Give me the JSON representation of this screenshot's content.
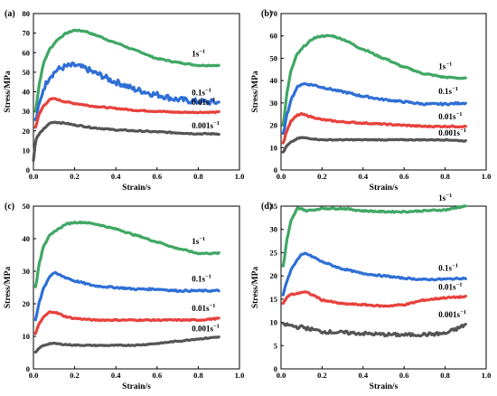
{
  "colors": {
    "1s-1": "#3fa764",
    "0.1s-1": "#2f6fd6",
    "0.01s-1": "#e8413c",
    "0.001s-1": "#555555"
  },
  "chart_data": [
    {
      "type": "line",
      "panel_label": "(a)",
      "xlabel": "Strain/s",
      "ylabel": "Stress/MPa",
      "xlim": [
        0.0,
        1.0
      ],
      "ylim": [
        0,
        80
      ],
      "xticks": [
        "0.0",
        "0.2",
        "0.4",
        "0.6",
        "0.8",
        "1.0"
      ],
      "yticks": [
        "0",
        "10",
        "20",
        "30",
        "40",
        "50",
        "60",
        "70",
        "80"
      ],
      "series": [
        {
          "name": "1s",
          "exponent": "−1",
          "color_key": "1s-1",
          "noise": 0.3,
          "x": [
            0.01,
            0.03,
            0.05,
            0.08,
            0.12,
            0.16,
            0.2,
            0.25,
            0.3,
            0.4,
            0.5,
            0.6,
            0.7,
            0.8,
            0.9
          ],
          "y": [
            30,
            45,
            55,
            62,
            67,
            70,
            71.5,
            71,
            69,
            65,
            61,
            57,
            55,
            53.5,
            53.5
          ]
        },
        {
          "name": "0.1s",
          "exponent": "−1",
          "color_key": "0.1s-1",
          "noise": 1.5,
          "x": [
            0.01,
            0.03,
            0.05,
            0.08,
            0.12,
            0.16,
            0.2,
            0.25,
            0.3,
            0.4,
            0.5,
            0.6,
            0.7,
            0.8,
            0.9
          ],
          "y": [
            25,
            34,
            42,
            48,
            51.5,
            53,
            53.5,
            52,
            49.5,
            45,
            41,
            38.5,
            36,
            35,
            34.5
          ]
        },
        {
          "name": "0.01s",
          "exponent": "−1",
          "color_key": "0.01s-1",
          "noise": 0.3,
          "x": [
            0.01,
            0.03,
            0.05,
            0.08,
            0.1,
            0.15,
            0.2,
            0.3,
            0.4,
            0.5,
            0.6,
            0.7,
            0.8,
            0.9
          ],
          "y": [
            22,
            29,
            33,
            36,
            36.5,
            35,
            34,
            32.5,
            31.5,
            30.5,
            30,
            29.5,
            29.5,
            29.5
          ]
        },
        {
          "name": "0.001s",
          "exponent": "−1",
          "color_key": "0.001s-1",
          "noise": 0.3,
          "x": [
            0.0,
            0.01,
            0.02,
            0.04,
            0.06,
            0.08,
            0.1,
            0.15,
            0.2,
            0.3,
            0.4,
            0.5,
            0.6,
            0.7,
            0.8,
            0.9
          ],
          "y": [
            5,
            15,
            17,
            20,
            22,
            24,
            24.5,
            24,
            23,
            21.5,
            20.5,
            20,
            19.5,
            19,
            18.5,
            18.5
          ]
        }
      ]
    },
    {
      "type": "line",
      "panel_label": "(b)",
      "xlabel": "Strain/s",
      "ylabel": "Stress/MPa",
      "xlim": [
        0.0,
        1.0
      ],
      "ylim": [
        0,
        70
      ],
      "xticks": [
        "0.0",
        "0.2",
        "0.4",
        "0.6",
        "0.8",
        "1.0"
      ],
      "yticks": [
        "0",
        "10",
        "20",
        "30",
        "40",
        "50",
        "60",
        "70"
      ],
      "series": [
        {
          "name": "1s",
          "exponent": "−1",
          "color_key": "1s-1",
          "noise": 0.3,
          "x": [
            0.01,
            0.03,
            0.05,
            0.08,
            0.12,
            0.16,
            0.2,
            0.25,
            0.3,
            0.4,
            0.5,
            0.6,
            0.7,
            0.8,
            0.9
          ],
          "y": [
            20,
            35,
            45,
            52,
            56,
            59,
            60,
            60,
            58.5,
            54,
            50,
            46,
            43,
            41.5,
            41
          ]
        },
        {
          "name": "0.1s",
          "exponent": "−1",
          "color_key": "0.1s-1",
          "noise": 0.4,
          "x": [
            0.01,
            0.03,
            0.05,
            0.08,
            0.1,
            0.12,
            0.16,
            0.2,
            0.3,
            0.4,
            0.5,
            0.6,
            0.7,
            0.8,
            0.9
          ],
          "y": [
            16,
            25,
            32,
            37,
            38.5,
            38.5,
            38,
            37,
            35,
            33,
            31.5,
            30.5,
            29.5,
            29.5,
            30
          ]
        },
        {
          "name": "0.01s",
          "exponent": "−1",
          "color_key": "0.01s-1",
          "noise": 0.3,
          "x": [
            0.01,
            0.03,
            0.05,
            0.08,
            0.1,
            0.12,
            0.16,
            0.2,
            0.3,
            0.4,
            0.5,
            0.6,
            0.7,
            0.8,
            0.9
          ],
          "y": [
            12,
            18,
            22,
            24.5,
            25,
            24.5,
            23.5,
            22.5,
            21.5,
            21,
            20.5,
            20,
            19.5,
            19.5,
            19.5
          ]
        },
        {
          "name": "0.001s",
          "exponent": "−1",
          "color_key": "0.001s-1",
          "noise": 0.2,
          "x": [
            0.01,
            0.03,
            0.05,
            0.08,
            0.1,
            0.15,
            0.2,
            0.3,
            0.4,
            0.5,
            0.6,
            0.7,
            0.8,
            0.9
          ],
          "y": [
            8,
            11,
            12.5,
            14,
            14.5,
            14,
            13.5,
            13.5,
            13.5,
            13.5,
            13.5,
            13.5,
            13.5,
            13
          ]
        }
      ]
    },
    {
      "type": "line",
      "panel_label": "(c)",
      "xlabel": "Strain/s",
      "ylabel": "Stress/MPa",
      "xlim": [
        0.0,
        1.0
      ],
      "ylim": [
        0,
        50
      ],
      "xticks": [
        "0.0",
        "0.2",
        "0.4",
        "0.6",
        "0.8",
        "1.0"
      ],
      "yticks": [
        "0",
        "10",
        "20",
        "30",
        "40",
        "50"
      ],
      "series": [
        {
          "name": "1s",
          "exponent": "−1",
          "color_key": "1s-1",
          "noise": 0.2,
          "x": [
            0.01,
            0.03,
            0.05,
            0.08,
            0.12,
            0.16,
            0.2,
            0.25,
            0.3,
            0.4,
            0.5,
            0.6,
            0.7,
            0.8,
            0.9
          ],
          "y": [
            25,
            33,
            38,
            41,
            43,
            44.5,
            45,
            45,
            44.5,
            43,
            41,
            39,
            37,
            35.5,
            35.5
          ]
        },
        {
          "name": "0.1s",
          "exponent": "−1",
          "color_key": "0.1s-1",
          "noise": 0.25,
          "x": [
            0.01,
            0.03,
            0.05,
            0.08,
            0.1,
            0.12,
            0.16,
            0.2,
            0.3,
            0.4,
            0.5,
            0.6,
            0.7,
            0.8,
            0.9
          ],
          "y": [
            15,
            21,
            25,
            28.5,
            29.5,
            29,
            28,
            27,
            25.5,
            25,
            24.5,
            24.5,
            24,
            24,
            24
          ]
        },
        {
          "name": "0.01s",
          "exponent": "−1",
          "color_key": "0.01s-1",
          "noise": 0.2,
          "x": [
            0.01,
            0.03,
            0.05,
            0.08,
            0.1,
            0.12,
            0.16,
            0.2,
            0.3,
            0.4,
            0.5,
            0.6,
            0.7,
            0.8,
            0.9
          ],
          "y": [
            11,
            14,
            16,
            17.5,
            17.5,
            17,
            16,
            15.5,
            15,
            15,
            15,
            15,
            15,
            15,
            15.5
          ]
        },
        {
          "name": "0.001s",
          "exponent": "−1",
          "color_key": "0.001s-1",
          "noise": 0.15,
          "x": [
            0.01,
            0.03,
            0.05,
            0.08,
            0.1,
            0.15,
            0.2,
            0.3,
            0.4,
            0.5,
            0.6,
            0.7,
            0.8,
            0.9
          ],
          "y": [
            5,
            6.5,
            7.2,
            7.8,
            7.8,
            7.5,
            7.3,
            7.2,
            7.2,
            7.3,
            7.8,
            8.5,
            9.2,
            9.8
          ]
        }
      ]
    },
    {
      "type": "line",
      "panel_label": "(d)",
      "xlabel": "Strain/s",
      "ylabel": "Stress/MPa",
      "xlim": [
        0.0,
        1.0
      ],
      "ylim": [
        0,
        35
      ],
      "xticks": [
        "0.0",
        "0.2",
        "0.4",
        "0.6",
        "0.8",
        "1.0"
      ],
      "yticks": [
        "0",
        "5",
        "10",
        "15",
        "20",
        "25",
        "30",
        "35"
      ],
      "series": [
        {
          "name": "1s",
          "exponent": "−1",
          "color_key": "1s-1",
          "noise": 0.15,
          "x": [
            0.01,
            0.03,
            0.05,
            0.08,
            0.1,
            0.12,
            0.16,
            0.2,
            0.3,
            0.4,
            0.5,
            0.6,
            0.7,
            0.8,
            0.9
          ],
          "y": [
            22,
            28,
            32,
            34.5,
            34.5,
            34,
            34.2,
            34.5,
            34.5,
            34,
            33.8,
            33.8,
            34,
            34.2,
            35
          ]
        },
        {
          "name": "0.1s",
          "exponent": "−1",
          "color_key": "0.1s-1",
          "noise": 0.15,
          "x": [
            0.01,
            0.03,
            0.05,
            0.08,
            0.1,
            0.12,
            0.16,
            0.2,
            0.3,
            0.4,
            0.5,
            0.6,
            0.7,
            0.8,
            0.9
          ],
          "y": [
            16,
            19,
            21.5,
            23.5,
            24.5,
            24.8,
            24,
            23,
            21.5,
            20.5,
            20,
            19.5,
            19.2,
            19.3,
            19.5
          ]
        },
        {
          "name": "0.01s",
          "exponent": "−1",
          "color_key": "0.01s-1",
          "noise": 0.15,
          "x": [
            0.01,
            0.03,
            0.05,
            0.08,
            0.1,
            0.12,
            0.16,
            0.2,
            0.3,
            0.4,
            0.5,
            0.6,
            0.7,
            0.8,
            0.9
          ],
          "y": [
            14,
            15.5,
            16,
            16.2,
            16.5,
            16.5,
            15.8,
            14.8,
            14,
            13.8,
            13.5,
            13.8,
            14.8,
            15.3,
            15.5
          ]
        },
        {
          "name": "0.001s",
          "exponent": "−1",
          "color_key": "0.001s-1",
          "noise": 0.35,
          "x": [
            0.01,
            0.03,
            0.05,
            0.08,
            0.1,
            0.15,
            0.2,
            0.3,
            0.4,
            0.5,
            0.6,
            0.7,
            0.8,
            0.85,
            0.9
          ],
          "y": [
            9.5,
            9.5,
            9.3,
            9,
            9,
            8.5,
            8,
            7.8,
            7.6,
            7.4,
            7.3,
            7.4,
            7.6,
            8.5,
            9.5
          ]
        }
      ]
    }
  ]
}
